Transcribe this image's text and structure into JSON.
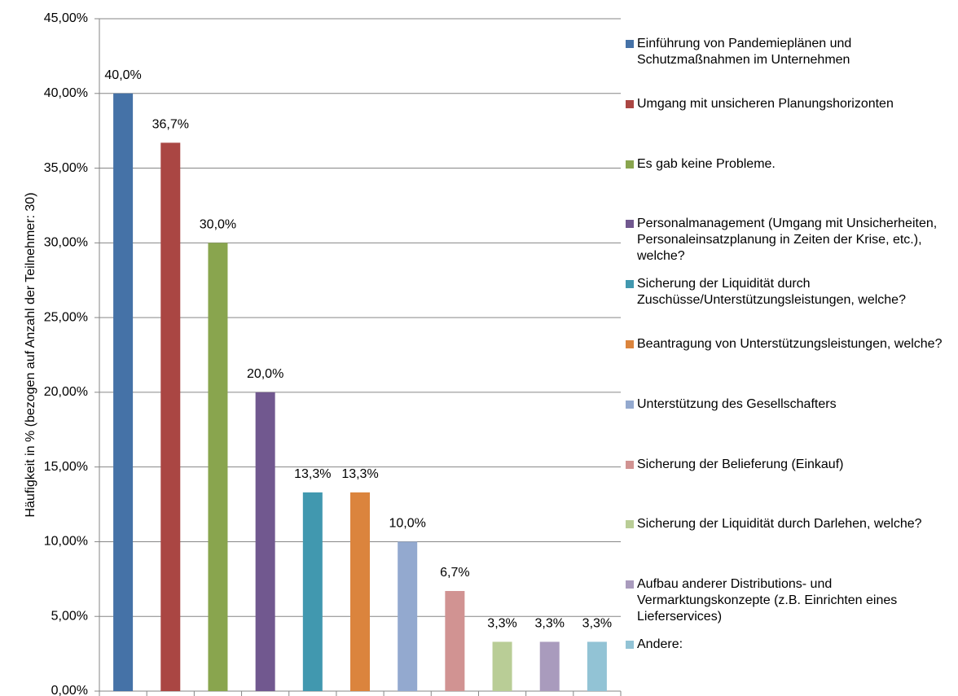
{
  "chart_data": {
    "type": "bar",
    "y_label": "Häufigkeit in % (bezogen auf Anzahl der Teilnehmer: 30)",
    "categories": [
      "Einführung von Pandemieplänen und Schutzmaßnahmen im Unternehmen",
      "Umgang mit unsicheren Planungshorizonten",
      "Es gab keine Probleme.",
      "Personalmanagement (Umgang mit Unsicherheiten, Personaleinsatzplanung in Zeiten der Krise, etc.), welche?",
      "Sicherung der Liquidität durch Zuschüsse/Unterstützungsleistungen, welche?",
      "Beantragung von Unterstützungsleistungen, welche?",
      "Unterstützung des Gesellschafters",
      "Sicherung der Belieferung (Einkauf)",
      "Sicherung der Liquidität durch Darlehen, welche?",
      "Aufbau anderer Distributions- und Vermarktungskonzepte (z.B. Einrichten eines Lieferservices)",
      "Andere:"
    ],
    "values": [
      40.0,
      36.7,
      30.0,
      20.0,
      13.3,
      13.3,
      10.0,
      6.7,
      3.3,
      3.3,
      3.3
    ],
    "value_labels": [
      "40,0%",
      "36,7%",
      "30,0%",
      "20,0%",
      "13,3%",
      "13,3%",
      "10,0%",
      "6,7%",
      "3,3%",
      "3,3%",
      "3,3%"
    ],
    "colors": [
      "#4572a7",
      "#aa4643",
      "#89a54e",
      "#71588f",
      "#4198af",
      "#db843d",
      "#93a9cf",
      "#d19392",
      "#b9cd96",
      "#a99bbd",
      "#92c3d5"
    ],
    "ylim": [
      0,
      45
    ],
    "yticks": [
      {
        "value": 0,
        "label": "0,00%"
      },
      {
        "value": 5,
        "label": "5,00%"
      },
      {
        "value": 10,
        "label": "10,00%"
      },
      {
        "value": 15,
        "label": "15,00%"
      },
      {
        "value": 20,
        "label": "20,00%"
      },
      {
        "value": 25,
        "label": "25,00%"
      },
      {
        "value": 30,
        "label": "30,00%"
      },
      {
        "value": 35,
        "label": "35,00%"
      },
      {
        "value": 40,
        "label": "40,00%"
      },
      {
        "value": 45,
        "label": "45,00%"
      }
    ],
    "grid": true,
    "legend": "right"
  }
}
